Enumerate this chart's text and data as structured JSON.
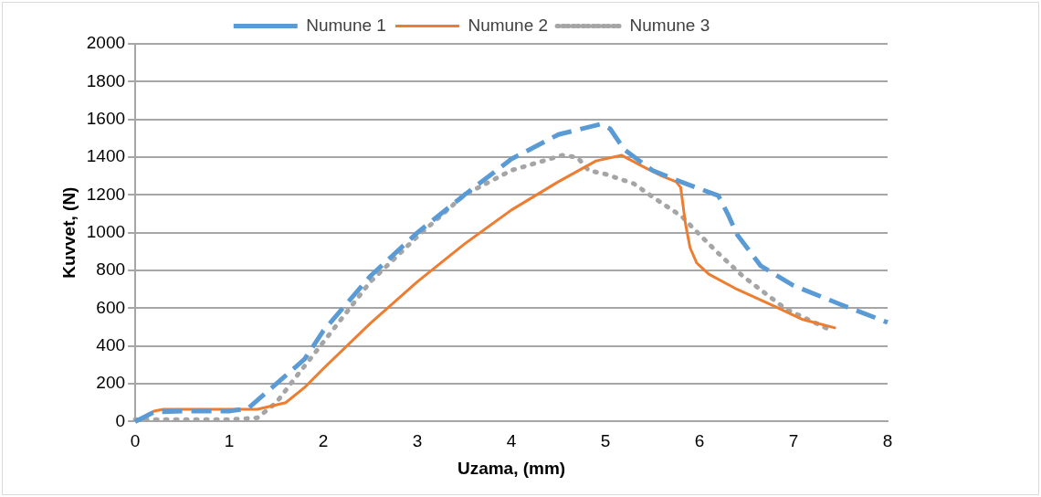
{
  "chart_data": {
    "type": "line",
    "xlabel": "Uzama, (mm)",
    "ylabel": "Kuvvet, (N)",
    "xlim": [
      0,
      8
    ],
    "xticks": [
      0,
      1,
      2,
      3,
      4,
      5,
      6,
      7,
      8
    ],
    "ylim": [
      0,
      2000
    ],
    "yticks": [
      0,
      200,
      400,
      600,
      800,
      1000,
      1200,
      1400,
      1600,
      1800,
      2000
    ],
    "grid": "y",
    "legend": "top",
    "marker": "none",
    "series": [
      {
        "name": "Numune 1",
        "color": "#5b9bd5",
        "line_style": "dashed",
        "x": [
          0,
          0.2,
          0.5,
          1,
          1.2,
          1.5,
          1.8,
          2,
          2.5,
          3,
          3.5,
          4,
          4.5,
          4.95,
          5.05,
          5.2,
          5.5,
          5.8,
          6.2,
          6.3,
          6.4,
          6.65,
          7,
          7.5,
          8
        ],
        "values": [
          0,
          50,
          55,
          55,
          70,
          200,
          330,
          480,
          770,
          1000,
          1200,
          1390,
          1520,
          1575,
          1550,
          1440,
          1330,
          1270,
          1196,
          1100,
          990,
          825,
          720,
          620,
          525
        ]
      },
      {
        "name": "Numune 2",
        "color": "#ed7d31",
        "line_style": "solid",
        "x": [
          0,
          0.2,
          0.3,
          1,
          1.3,
          1.6,
          1.8,
          2,
          2.5,
          3,
          3.5,
          4,
          4.5,
          4.9,
          5.17,
          5.4,
          5.6,
          5.75,
          5.8,
          5.85,
          5.9,
          5.97,
          6.1,
          6.4,
          6.8,
          7.1,
          7.45
        ],
        "values": [
          0,
          55,
          65,
          65,
          65,
          100,
          180,
          280,
          520,
          740,
          940,
          1120,
          1270,
          1380,
          1410,
          1350,
          1300,
          1270,
          1240,
          1050,
          920,
          840,
          780,
          700,
          610,
          540,
          495
        ]
      },
      {
        "name": "Numune 3",
        "color": "#a5a5a5",
        "line_style": "dotted",
        "x": [
          0,
          0.2,
          1,
          1.3,
          1.5,
          1.7,
          2,
          2.5,
          3,
          3.5,
          4,
          4.54,
          4.7,
          4.82,
          5,
          5.3,
          5.53,
          5.81,
          6,
          6.19,
          6.46,
          6.92,
          7.2,
          7.41
        ],
        "values": [
          10,
          10,
          10,
          20,
          100,
          230,
          420,
          740,
          980,
          1200,
          1330,
          1410,
          1400,
          1330,
          1310,
          1260,
          1180,
          1087,
          990,
          896,
          770,
          595,
          530,
          480
        ]
      }
    ]
  }
}
